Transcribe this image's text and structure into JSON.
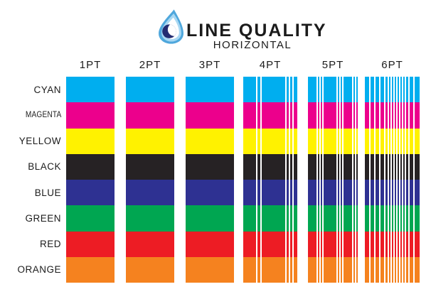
{
  "header": {
    "title": "LINE QUALITY",
    "subtitle": "HORIZONTAL",
    "logo": {
      "icon": "water-drop-icon",
      "outer_color": "#4FA7DC",
      "inner_ring_color": "#A9D8F3",
      "crescent_color": "#232C72"
    }
  },
  "grid": {
    "rows": [
      {
        "label": "CYAN",
        "color": "#00AEEF"
      },
      {
        "label": "MAGENTA",
        "color": "#EC008C"
      },
      {
        "label": "YELLOW",
        "color": "#FFF200"
      },
      {
        "label": "BLACK",
        "color": "#262224"
      },
      {
        "label": "BLUE",
        "color": "#2E3192"
      },
      {
        "label": "GREEN",
        "color": "#00A651"
      },
      {
        "label": "RED",
        "color": "#ED1C24"
      },
      {
        "label": "ORANGE",
        "color": "#F5821F"
      }
    ],
    "columns": [
      {
        "label": "1PT",
        "gap_fractions": []
      },
      {
        "label": "2PT",
        "gap_fractions": []
      },
      {
        "label": "3PT",
        "gap_fractions": []
      },
      {
        "label": "4PT",
        "gap_fractions": [
          0.24,
          0.31,
          0.77,
          0.84,
          0.905
        ]
      },
      {
        "label": "5PT",
        "gap_fractions": [
          0.17,
          0.23,
          0.29,
          0.57,
          0.63,
          0.69,
          0.88,
          0.94
        ]
      },
      {
        "label": "6PT",
        "gap_fractions": [
          0.078,
          0.169,
          0.26,
          0.351,
          0.416,
          0.468,
          0.519,
          0.571,
          0.623,
          0.675,
          0.727,
          0.792,
          0.883
        ]
      }
    ],
    "gap_color": "#FFFFFF"
  }
}
